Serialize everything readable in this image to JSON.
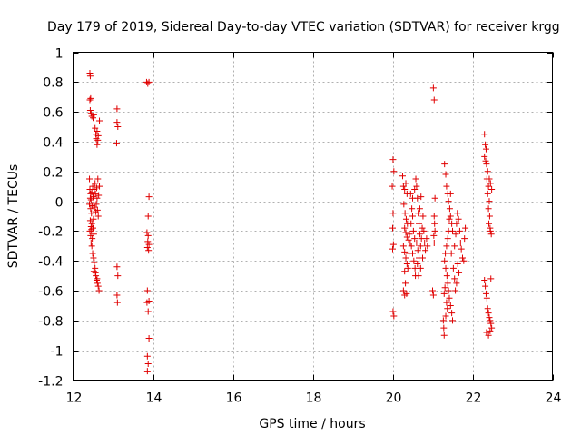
{
  "chart_data": {
    "type": "scatter",
    "title": "Day 179 of 2019, Sidereal Day-to-day VTEC variation (SDTVAR) for receiver krgg",
    "xlabel": "GPS time / hours",
    "ylabel": "SDTVAR / TECUs",
    "xlim": [
      12,
      24
    ],
    "ylim": [
      -1.2,
      1
    ],
    "xticks": [
      12,
      14,
      16,
      18,
      20,
      22,
      24
    ],
    "xtick_labels": [
      "12",
      "14",
      "16",
      "18",
      "20",
      "22",
      "24"
    ],
    "yticks": [
      -1.2,
      -1,
      -0.8,
      -0.6,
      -0.4,
      -0.2,
      0,
      0.2,
      0.4,
      0.6,
      0.8,
      1
    ],
    "ytick_labels": [
      "-1.2",
      "-1",
      "-0.8",
      "-0.6",
      "-0.4",
      "-0.2",
      "0",
      "0.2",
      "0.4",
      "0.6",
      "0.8",
      "1"
    ],
    "grid": true,
    "marker": "+",
    "marker_color": "#e00000",
    "series": [
      {
        "name": "SDTVAR",
        "points": [
          [
            12.42,
            0.86
          ],
          [
            12.43,
            0.84
          ],
          [
            12.42,
            0.68
          ],
          [
            12.44,
            0.69
          ],
          [
            12.43,
            0.61
          ],
          [
            12.45,
            0.59
          ],
          [
            12.47,
            0.57
          ],
          [
            12.5,
            0.56
          ],
          [
            12.52,
            0.58
          ],
          [
            12.55,
            0.49
          ],
          [
            12.57,
            0.45
          ],
          [
            12.6,
            0.47
          ],
          [
            12.62,
            0.41
          ],
          [
            12.6,
            0.38
          ],
          [
            12.63,
            0.44
          ],
          [
            12.66,
            0.54
          ],
          [
            12.58,
            0.42
          ],
          [
            12.41,
            0.15
          ],
          [
            12.42,
            0.08
          ],
          [
            12.44,
            0.05
          ],
          [
            12.43,
            0.02
          ],
          [
            12.41,
            -0.02
          ],
          [
            12.44,
            -0.05
          ],
          [
            12.46,
            -0.08
          ],
          [
            12.45,
            0.01
          ],
          [
            12.47,
            0.06
          ],
          [
            12.49,
            0.1
          ],
          [
            12.5,
            0.03
          ],
          [
            12.48,
            -0.03
          ],
          [
            12.52,
            -0.01
          ],
          [
            12.53,
            0.08
          ],
          [
            12.55,
            0.12
          ],
          [
            12.56,
            0.05
          ],
          [
            12.58,
            -0.02
          ],
          [
            12.6,
            0.02
          ],
          [
            12.61,
            -0.06
          ],
          [
            12.63,
            -0.1
          ],
          [
            12.64,
            0.04
          ],
          [
            12.66,
            0.1
          ],
          [
            12.62,
            0.15
          ],
          [
            12.59,
            0.09
          ],
          [
            12.57,
            -0.07
          ],
          [
            12.54,
            -0.04
          ],
          [
            12.51,
            -0.12
          ],
          [
            12.47,
            -0.15
          ],
          [
            12.45,
            -0.17
          ],
          [
            12.43,
            -0.13
          ],
          [
            12.42,
            -0.2
          ],
          [
            12.44,
            -0.23
          ],
          [
            12.46,
            -0.19
          ],
          [
            12.48,
            -0.25
          ],
          [
            12.5,
            -0.18
          ],
          [
            12.52,
            -0.22
          ],
          [
            12.45,
            -0.28
          ],
          [
            12.47,
            -0.3
          ],
          [
            12.49,
            -0.35
          ],
          [
            12.51,
            -0.38
          ],
          [
            12.53,
            -0.41
          ],
          [
            12.55,
            -0.45
          ],
          [
            12.52,
            -0.47
          ],
          [
            12.57,
            -0.5
          ],
          [
            12.59,
            -0.53
          ],
          [
            12.61,
            -0.55
          ],
          [
            12.63,
            -0.57
          ],
          [
            12.65,
            -0.6
          ],
          [
            12.6,
            -0.52
          ],
          [
            12.56,
            -0.48
          ],
          [
            13.1,
            0.62
          ],
          [
            13.1,
            0.53
          ],
          [
            13.12,
            0.5
          ],
          [
            13.09,
            0.39
          ],
          [
            13.1,
            -0.44
          ],
          [
            13.12,
            -0.5
          ],
          [
            13.1,
            -0.63
          ],
          [
            13.11,
            -0.68
          ],
          [
            13.84,
            0.8
          ],
          [
            13.87,
            0.79
          ],
          [
            13.9,
            0.8
          ],
          [
            13.9,
            0.03
          ],
          [
            13.88,
            -0.1
          ],
          [
            13.85,
            -0.21
          ],
          [
            13.88,
            -0.23
          ],
          [
            13.87,
            -0.27
          ],
          [
            13.9,
            -0.29
          ],
          [
            13.86,
            -0.31
          ],
          [
            13.89,
            -0.33
          ],
          [
            13.86,
            -0.6
          ],
          [
            13.85,
            -0.68
          ],
          [
            13.9,
            -0.67
          ],
          [
            13.88,
            -0.74
          ],
          [
            13.9,
            -0.92
          ],
          [
            13.86,
            -1.04
          ],
          [
            13.88,
            -1.09
          ],
          [
            13.86,
            -1.14
          ],
          [
            20.01,
            0.28
          ],
          [
            20.03,
            0.2
          ],
          [
            19.99,
            0.1
          ],
          [
            20.01,
            -0.08
          ],
          [
            20.0,
            -0.18
          ],
          [
            20.02,
            -0.29
          ],
          [
            20.0,
            -0.32
          ],
          [
            20.01,
            -0.74
          ],
          [
            20.03,
            -0.77
          ],
          [
            20.25,
            0.17
          ],
          [
            20.27,
            0.1
          ],
          [
            20.3,
            0.08
          ],
          [
            20.33,
            0.12
          ],
          [
            20.36,
            0.05
          ],
          [
            20.28,
            -0.02
          ],
          [
            20.31,
            -0.08
          ],
          [
            20.34,
            -0.12
          ],
          [
            20.37,
            -0.15
          ],
          [
            20.3,
            -0.18
          ],
          [
            20.33,
            -0.21
          ],
          [
            20.36,
            -0.24
          ],
          [
            20.4,
            -0.26
          ],
          [
            20.27,
            -0.3
          ],
          [
            20.3,
            -0.34
          ],
          [
            20.33,
            -0.38
          ],
          [
            20.36,
            -0.42
          ],
          [
            20.3,
            -0.47
          ],
          [
            20.32,
            -0.55
          ],
          [
            20.27,
            -0.6
          ],
          [
            20.3,
            -0.63
          ],
          [
            20.35,
            -0.62
          ],
          [
            20.45,
            0.05
          ],
          [
            20.48,
            -0.05
          ],
          [
            20.5,
            -0.1
          ],
          [
            20.52,
            -0.2
          ],
          [
            20.55,
            -0.25
          ],
          [
            20.47,
            -0.3
          ],
          [
            20.5,
            -0.35
          ],
          [
            20.53,
            -0.4
          ],
          [
            20.56,
            -0.45
          ],
          [
            20.42,
            -0.22
          ],
          [
            20.44,
            -0.28
          ],
          [
            20.58,
            0.15
          ],
          [
            20.6,
            0.1
          ],
          [
            20.62,
            0.02
          ],
          [
            20.64,
            -0.08
          ],
          [
            20.66,
            -0.15
          ],
          [
            20.68,
            -0.22
          ],
          [
            20.6,
            -0.28
          ],
          [
            20.63,
            -0.33
          ],
          [
            20.66,
            -0.38
          ],
          [
            20.7,
            -0.3
          ],
          [
            20.72,
            -0.25
          ],
          [
            20.74,
            -0.18
          ],
          [
            20.76,
            -0.1
          ],
          [
            20.78,
            -0.2
          ],
          [
            20.8,
            -0.28
          ],
          [
            20.82,
            -0.33
          ],
          [
            20.75,
            -0.38
          ],
          [
            20.7,
            -0.45
          ],
          [
            20.65,
            -0.5
          ],
          [
            20.57,
            -0.5
          ],
          [
            20.62,
            -0.42
          ],
          [
            20.68,
            -0.05
          ],
          [
            20.71,
            0.03
          ],
          [
            20.55,
            0.08
          ],
          [
            20.5,
            0.02
          ],
          [
            20.46,
            -0.15
          ],
          [
            20.41,
            -0.35
          ],
          [
            20.38,
            -0.45
          ],
          [
            20.85,
            -0.25
          ],
          [
            20.87,
            -0.3
          ],
          [
            21.02,
            0.76
          ],
          [
            21.04,
            0.68
          ],
          [
            21.0,
            -0.6
          ],
          [
            21.02,
            -0.63
          ],
          [
            21.06,
            0.02
          ],
          [
            21.04,
            -0.1
          ],
          [
            21.05,
            -0.15
          ],
          [
            21.06,
            -0.2
          ],
          [
            21.03,
            -0.23
          ],
          [
            21.04,
            -0.28
          ],
          [
            21.3,
            0.25
          ],
          [
            21.33,
            0.18
          ],
          [
            21.35,
            0.1
          ],
          [
            21.38,
            0.05
          ],
          [
            21.4,
            0.0
          ],
          [
            21.43,
            -0.05
          ],
          [
            21.45,
            -0.1
          ],
          [
            21.48,
            -0.15
          ],
          [
            21.5,
            -0.2
          ],
          [
            21.38,
            -0.25
          ],
          [
            21.35,
            -0.3
          ],
          [
            21.32,
            -0.35
          ],
          [
            21.3,
            -0.4
          ],
          [
            21.33,
            -0.45
          ],
          [
            21.36,
            -0.5
          ],
          [
            21.38,
            -0.55
          ],
          [
            21.4,
            -0.6
          ],
          [
            21.42,
            -0.65
          ],
          [
            21.45,
            -0.7
          ],
          [
            21.48,
            -0.75
          ],
          [
            21.5,
            -0.8
          ],
          [
            21.35,
            -0.68
          ],
          [
            21.37,
            -0.72
          ],
          [
            21.31,
            -0.58
          ],
          [
            21.29,
            -0.62
          ],
          [
            21.27,
            -0.8
          ],
          [
            21.28,
            -0.85
          ],
          [
            21.29,
            -0.9
          ],
          [
            21.33,
            -0.77
          ],
          [
            21.4,
            -0.2
          ],
          [
            21.42,
            -0.12
          ],
          [
            21.45,
            0.05
          ],
          [
            21.47,
            -0.35
          ],
          [
            21.52,
            -0.45
          ],
          [
            21.55,
            -0.52
          ],
          [
            21.55,
            -0.3
          ],
          [
            21.58,
            -0.22
          ],
          [
            21.6,
            -0.15
          ],
          [
            21.62,
            -0.08
          ],
          [
            21.65,
            -0.12
          ],
          [
            21.68,
            -0.2
          ],
          [
            21.7,
            -0.28
          ],
          [
            21.72,
            -0.32
          ],
          [
            21.75,
            -0.38
          ],
          [
            21.78,
            -0.4
          ],
          [
            21.8,
            -0.25
          ],
          [
            21.82,
            -0.18
          ],
          [
            21.63,
            -0.42
          ],
          [
            21.66,
            -0.48
          ],
          [
            21.6,
            -0.55
          ],
          [
            21.57,
            -0.6
          ],
          [
            22.3,
            0.45
          ],
          [
            22.32,
            0.38
          ],
          [
            22.34,
            0.35
          ],
          [
            22.3,
            0.3
          ],
          [
            22.33,
            0.27
          ],
          [
            22.35,
            0.25
          ],
          [
            22.38,
            0.2
          ],
          [
            22.36,
            0.15
          ],
          [
            22.4,
            0.1
          ],
          [
            22.38,
            0.05
          ],
          [
            22.42,
            0.0
          ],
          [
            22.4,
            -0.05
          ],
          [
            22.43,
            -0.1
          ],
          [
            22.41,
            -0.15
          ],
          [
            22.44,
            -0.18
          ],
          [
            22.45,
            -0.2
          ],
          [
            22.47,
            -0.22
          ],
          [
            22.42,
            0.15
          ],
          [
            22.45,
            0.12
          ],
          [
            22.48,
            0.08
          ],
          [
            22.46,
            -0.52
          ],
          [
            22.3,
            -0.53
          ],
          [
            22.32,
            -0.57
          ],
          [
            22.34,
            -0.62
          ],
          [
            22.36,
            -0.65
          ],
          [
            22.38,
            -0.72
          ],
          [
            22.4,
            -0.75
          ],
          [
            22.42,
            -0.78
          ],
          [
            22.44,
            -0.8
          ],
          [
            22.46,
            -0.82
          ],
          [
            22.48,
            -0.85
          ],
          [
            22.35,
            -0.88
          ],
          [
            22.4,
            -0.9
          ],
          [
            22.44,
            -0.87
          ]
        ]
      }
    ]
  }
}
